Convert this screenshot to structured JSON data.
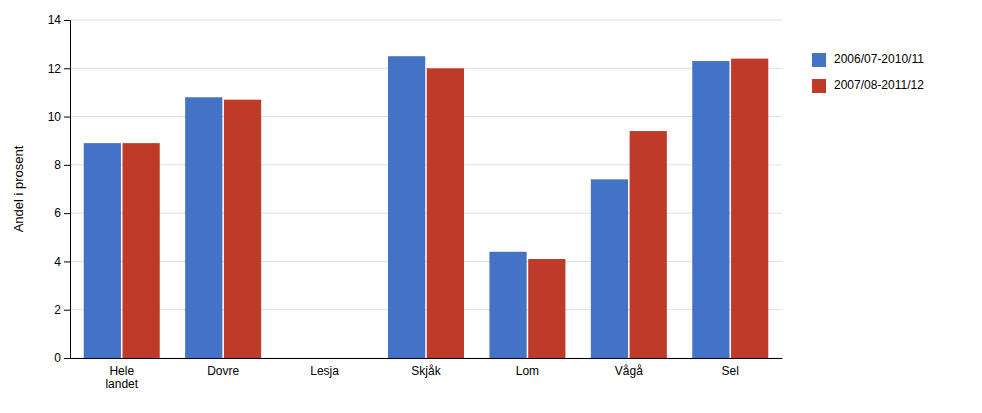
{
  "chart_data": {
    "type": "bar",
    "categories": [
      "Hele\nlandet",
      "Dovre",
      "Lesja",
      "Skjåk",
      "Lom",
      "Vågå",
      "Sel"
    ],
    "series": [
      {
        "name": "2006/07-2010/11",
        "color": "#4472C4",
        "values": [
          8.9,
          10.8,
          0,
          12.5,
          4.4,
          7.4,
          12.3
        ]
      },
      {
        "name": "2007/08-2011/12",
        "color": "#BE3B2A",
        "values": [
          8.9,
          10.7,
          0,
          12.0,
          4.1,
          9.4,
          12.4
        ]
      }
    ],
    "ylabel": "Andel i prosent",
    "ylim": [
      0,
      14
    ],
    "yticks": [
      0,
      2,
      4,
      6,
      8,
      10,
      12,
      14
    ],
    "grid": true,
    "legend": "right"
  }
}
